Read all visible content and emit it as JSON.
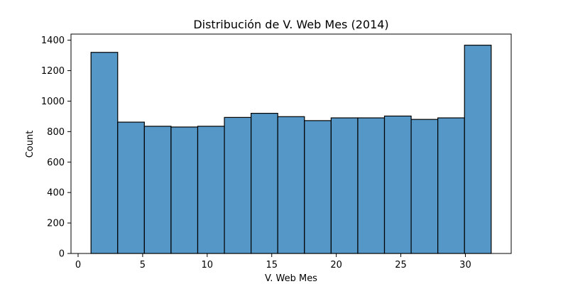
{
  "chart_data": {
    "type": "bar",
    "title": "Distribución de V. Web Mes (2014)",
    "xlabel": "V. Web Mes",
    "ylabel": "Count",
    "xlim": [
      -0.55,
      33.55
    ],
    "ylim": [
      0,
      1440
    ],
    "xticks": [
      0,
      5,
      10,
      15,
      20,
      25,
      30
    ],
    "yticks": [
      0,
      200,
      400,
      600,
      800,
      1000,
      1200,
      1400
    ],
    "bin_edges": [
      1,
      3.0667,
      5.1333,
      7.2,
      9.2667,
      11.3333,
      13.4,
      15.4667,
      17.5333,
      19.6,
      21.6667,
      23.7333,
      25.8,
      27.8667,
      29.9333,
      32
    ],
    "values": [
      1320,
      862,
      835,
      830,
      835,
      893,
      920,
      898,
      872,
      890,
      890,
      902,
      880,
      890,
      1367
    ],
    "bar_color": "#5597c7",
    "edge_color": "#000000",
    "grid": false
  }
}
